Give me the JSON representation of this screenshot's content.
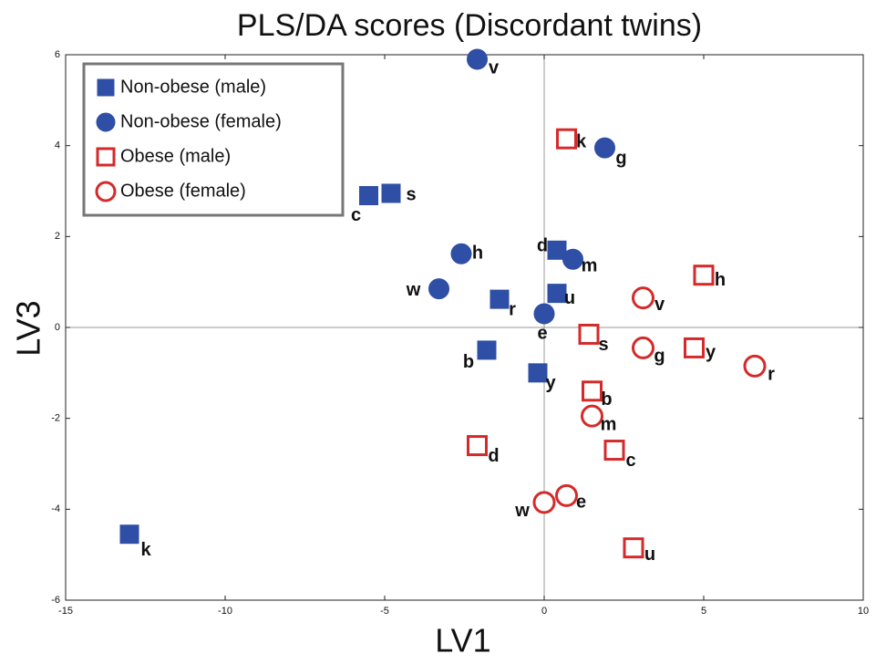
{
  "chart_data": {
    "type": "scatter",
    "title": "PLS/DA scores (Discordant twins)",
    "x_label": "LV1",
    "y_label": "LV3",
    "xlim": [
      -15,
      10
    ],
    "xticks": [
      -15,
      -10,
      -5,
      0,
      5,
      10
    ],
    "ylim": [
      -6,
      6
    ],
    "yticks": [
      -6,
      -4,
      -2,
      0,
      2,
      4,
      6
    ],
    "legend": "upper left",
    "zero_lines": true,
    "series": [
      {
        "name": "Non-obese (male)",
        "color": "#2f4ea6",
        "marker": "square",
        "filled": true,
        "labels": [
          "c",
          "s",
          "d",
          "u",
          "r",
          "b",
          "y",
          "k"
        ],
        "x": [
          -5.5,
          -4.8,
          0.4,
          0.4,
          -1.4,
          -1.8,
          -0.2,
          -13
        ],
        "values": [
          2.9,
          2.95,
          1.7,
          0.75,
          0.62,
          -0.5,
          -1.0,
          -4.55
        ]
      },
      {
        "name": "Non-obese (female)",
        "color": "#2f4ea6",
        "marker": "circle",
        "filled": true,
        "labels": [
          "v",
          "g",
          "h",
          "m",
          "w",
          "e"
        ],
        "x": [
          -2.1,
          1.9,
          -2.6,
          0.9,
          -3.3,
          0
        ],
        "values": [
          5.9,
          3.95,
          1.62,
          1.5,
          0.85,
          0.3
        ]
      },
      {
        "name": "Obese (male)",
        "color": "#d42a2a",
        "marker": "square",
        "filled": false,
        "labels": [
          "k",
          "h",
          "s",
          "y",
          "b",
          "c",
          "d",
          "u"
        ],
        "x": [
          0.7,
          5,
          1.4,
          4.7,
          1.5,
          2.2,
          -2.1,
          2.8
        ],
        "values": [
          4.15,
          1.15,
          -0.15,
          -0.45,
          -1.4,
          -2.7,
          -2.6,
          -4.85
        ]
      },
      {
        "name": "Obese (female)",
        "color": "#d42a2a",
        "marker": "circle",
        "filled": false,
        "labels": [
          "v",
          "g",
          "r",
          "m",
          "e",
          "w"
        ],
        "x": [
          3.1,
          3.1,
          6.6,
          1.5,
          0.7,
          0
        ],
        "values": [
          0.65,
          -0.45,
          -0.85,
          -1.95,
          -3.7,
          -3.85
        ]
      }
    ]
  }
}
